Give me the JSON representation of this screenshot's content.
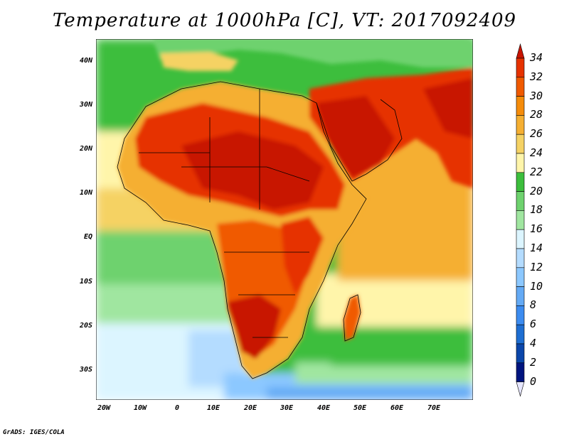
{
  "title": "Temperature at 1000hPa [C], VT: 2017092409",
  "credit": "GrADS: IGES/COLA",
  "map": {
    "lon_range": [
      -23,
      80
    ],
    "lat_range": [
      -37,
      45
    ],
    "lat_labels": [
      "40N",
      "30N",
      "20N",
      "10N",
      "EQ",
      "10S",
      "20S",
      "30S"
    ],
    "lon_labels": [
      "20W",
      "10W",
      "0",
      "10E",
      "20E",
      "30E",
      "40E",
      "50E",
      "60E",
      "70E"
    ]
  },
  "colorbar": {
    "labels": [
      "34",
      "32",
      "30",
      "28",
      "26",
      "24",
      "22",
      "20",
      "18",
      "16",
      "14",
      "12",
      "10",
      "8",
      "6",
      "4",
      "2",
      "0"
    ],
    "colors": [
      "#c81400",
      "#e63200",
      "#f05a00",
      "#f58c0a",
      "#f5af32",
      "#f5d264",
      "#fff5aa",
      "#3cbe3c",
      "#6ed26e",
      "#a0e6a0",
      "#dcf5ff",
      "#b4dcff",
      "#8cc8ff",
      "#64aaf5",
      "#3c8cf0",
      "#1e6ed2",
      "#0a46aa",
      "#00147f"
    ],
    "over_color": "#c81400",
    "under_color": "#e6e6ff"
  }
}
